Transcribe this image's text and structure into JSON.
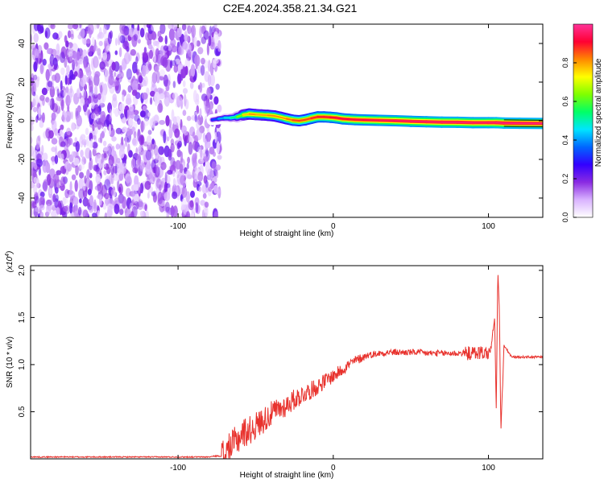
{
  "title": "C2E4.2024.358.21.34.G21",
  "chart_data": [
    {
      "type": "heatmap",
      "xlabel": "Height of straight line (km)",
      "ylabel": "Frequency (Hz)",
      "xlim": [
        -195,
        135
      ],
      "ylim": [
        -50,
        50
      ],
      "xticks": [
        -100,
        0,
        100
      ],
      "yticks": [
        -40,
        -20,
        0,
        20,
        40
      ],
      "colorbar": {
        "label": "Normalized spectral amplitude",
        "range": [
          0,
          1
        ],
        "ticks": [
          "0.0",
          "0.2",
          "0.4",
          "0.6",
          "0.8"
        ],
        "colors": [
          "#ffffff",
          "#d9b3ff",
          "#8a2be2",
          "#3300ff",
          "#0066ff",
          "#00e5ff",
          "#00ff66",
          "#7fff00",
          "#ffff00",
          "#ff8800",
          "#ff0033",
          "#ff3399"
        ]
      },
      "noise_region": {
        "x_from": -195,
        "x_to": -76,
        "level": 0.12
      },
      "ridge": [
        {
          "x": -78,
          "y": 0.5,
          "a": 0.3
        },
        {
          "x": -74,
          "y": 1.0,
          "a": 0.38
        },
        {
          "x": -70,
          "y": 1.5,
          "a": 0.45
        },
        {
          "x": -66,
          "y": 1.5,
          "a": 0.5
        },
        {
          "x": -62,
          "y": 2.0,
          "a": 0.55
        },
        {
          "x": -58,
          "y": 3.0,
          "a": 0.72
        },
        {
          "x": -54,
          "y": 3.5,
          "a": 0.82
        },
        {
          "x": -50,
          "y": 3.2,
          "a": 0.8
        },
        {
          "x": -46,
          "y": 3.0,
          "a": 0.78
        },
        {
          "x": -42,
          "y": 2.8,
          "a": 0.8
        },
        {
          "x": -38,
          "y": 2.5,
          "a": 0.82
        },
        {
          "x": -34,
          "y": 1.8,
          "a": 0.8
        },
        {
          "x": -30,
          "y": 1.0,
          "a": 0.82
        },
        {
          "x": -26,
          "y": 0.3,
          "a": 0.85
        },
        {
          "x": -22,
          "y": 0.0,
          "a": 0.88
        },
        {
          "x": -18,
          "y": 0.5,
          "a": 0.85
        },
        {
          "x": -14,
          "y": 1.3,
          "a": 0.88
        },
        {
          "x": -10,
          "y": 2.0,
          "a": 0.9
        },
        {
          "x": -6,
          "y": 2.0,
          "a": 0.9
        },
        {
          "x": -2,
          "y": 1.8,
          "a": 0.9
        },
        {
          "x": 2,
          "y": 1.5,
          "a": 0.92
        },
        {
          "x": 6,
          "y": 1.0,
          "a": 0.92
        },
        {
          "x": 10,
          "y": 0.8,
          "a": 0.92
        },
        {
          "x": 14,
          "y": 0.6,
          "a": 0.93
        },
        {
          "x": 20,
          "y": 0.4,
          "a": 0.93
        },
        {
          "x": 30,
          "y": 0.2,
          "a": 0.94
        },
        {
          "x": 40,
          "y": 0.0,
          "a": 0.95
        },
        {
          "x": 50,
          "y": -0.3,
          "a": 0.95
        },
        {
          "x": 60,
          "y": -0.5,
          "a": 0.95
        },
        {
          "x": 70,
          "y": -0.7,
          "a": 0.96
        },
        {
          "x": 80,
          "y": -0.8,
          "a": 0.96
        },
        {
          "x": 90,
          "y": -1.0,
          "a": 0.96
        },
        {
          "x": 100,
          "y": -1.0,
          "a": 0.95
        },
        {
          "x": 105,
          "y": -1.0,
          "a": 0.97
        },
        {
          "x": 110,
          "y": -1.2,
          "a": 0.97
        },
        {
          "x": 120,
          "y": -1.3,
          "a": 0.97
        },
        {
          "x": 135,
          "y": -1.4,
          "a": 0.97
        }
      ]
    },
    {
      "type": "line",
      "xlabel": "Height of straight line (km)",
      "ylabel": "SNR (10 * v/v)",
      "ylabel_multiplier": "(x10^4)",
      "xlim": [
        -195,
        135
      ],
      "ylim": [
        0,
        2.05
      ],
      "xticks": [
        -100,
        0,
        100
      ],
      "yticks": [
        0.5,
        1.0,
        1.5,
        2.0
      ],
      "color": "#e8322d",
      "x": [
        -195,
        -180,
        -160,
        -140,
        -120,
        -100,
        -90,
        -80,
        -76,
        -72,
        -70,
        -68,
        -66,
        -62,
        -58,
        -54,
        -50,
        -46,
        -42,
        -38,
        -34,
        -30,
        -26,
        -22,
        -18,
        -14,
        -10,
        -6,
        -2,
        2,
        6,
        10,
        14,
        18,
        22,
        26,
        30,
        35,
        40,
        45,
        50,
        55,
        60,
        65,
        70,
        75,
        80,
        85,
        90,
        95,
        100,
        102,
        104,
        105,
        106,
        107,
        108,
        110,
        115,
        120,
        125,
        130,
        135
      ],
      "y": [
        0.02,
        0.02,
        0.02,
        0.02,
        0.02,
        0.02,
        0.02,
        0.02,
        0.03,
        0.03,
        0.05,
        0.08,
        0.12,
        0.2,
        0.28,
        0.3,
        0.35,
        0.4,
        0.45,
        0.5,
        0.53,
        0.57,
        0.62,
        0.66,
        0.7,
        0.73,
        0.77,
        0.82,
        0.86,
        0.9,
        0.95,
        1.0,
        1.04,
        1.07,
        1.1,
        1.11,
        1.12,
        1.13,
        1.13,
        1.13,
        1.13,
        1.13,
        1.12,
        1.12,
        1.12,
        1.12,
        1.12,
        1.12,
        1.12,
        1.13,
        1.12,
        1.2,
        1.5,
        0.5,
        2.0,
        1.6,
        0.3,
        1.2,
        1.08,
        1.08,
        1.08,
        1.08,
        1.08
      ]
    }
  ]
}
